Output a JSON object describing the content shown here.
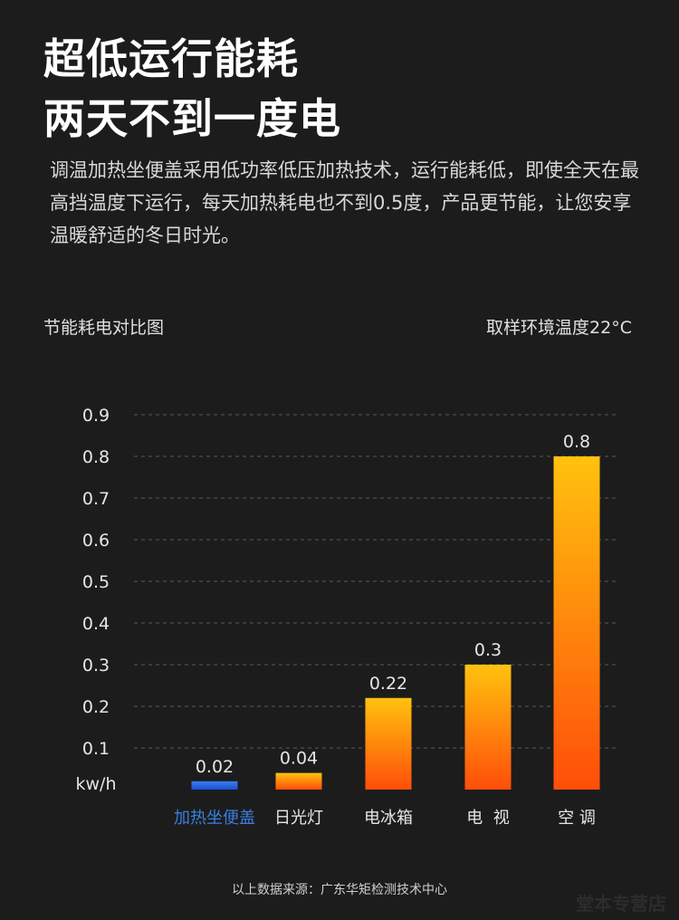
{
  "headline": {
    "line1": "超低运行能耗",
    "line2": "两天不到一度电"
  },
  "description": "调温加热坐便盖采用低功率低压加热技术，运行能耗低，即使全天在最高挡温度下运行，每天加热耗电也不到0.5度，产品更节能，让您安享温暖舒适的冬日时光。",
  "chart_header": {
    "title": "节能耗电对比图",
    "note": "取样环境温度22°C"
  },
  "chart_data": {
    "type": "bar",
    "title": "节能耗电对比图",
    "ylabel": "kw/h",
    "ylim": [
      0,
      0.9
    ],
    "yticks": [
      "0.1",
      "0.2",
      "0.3",
      "0.4",
      "0.5",
      "0.6",
      "0.7",
      "0.8",
      "0.9"
    ],
    "grid": true,
    "categories": [
      "加热坐便盖",
      "日光灯",
      "电冰箱",
      "电  视",
      "空 调"
    ],
    "values": [
      0.02,
      0.04,
      0.22,
      0.3,
      0.8
    ],
    "value_labels": [
      "0.02",
      "0.04",
      "0.22",
      "0.3",
      "0.8"
    ],
    "colors": {
      "highlight_bar_top": "#3d7ef2",
      "highlight_bar_bottom": "#1a4fd0",
      "highlight_label": "#3a7fe0",
      "bar_top": "#ffc20e",
      "bar_bottom": "#ff4e0a"
    }
  },
  "footer": {
    "source": "以上数据来源：广东华矩检测技术中心",
    "watermark": "堂本专营店"
  }
}
